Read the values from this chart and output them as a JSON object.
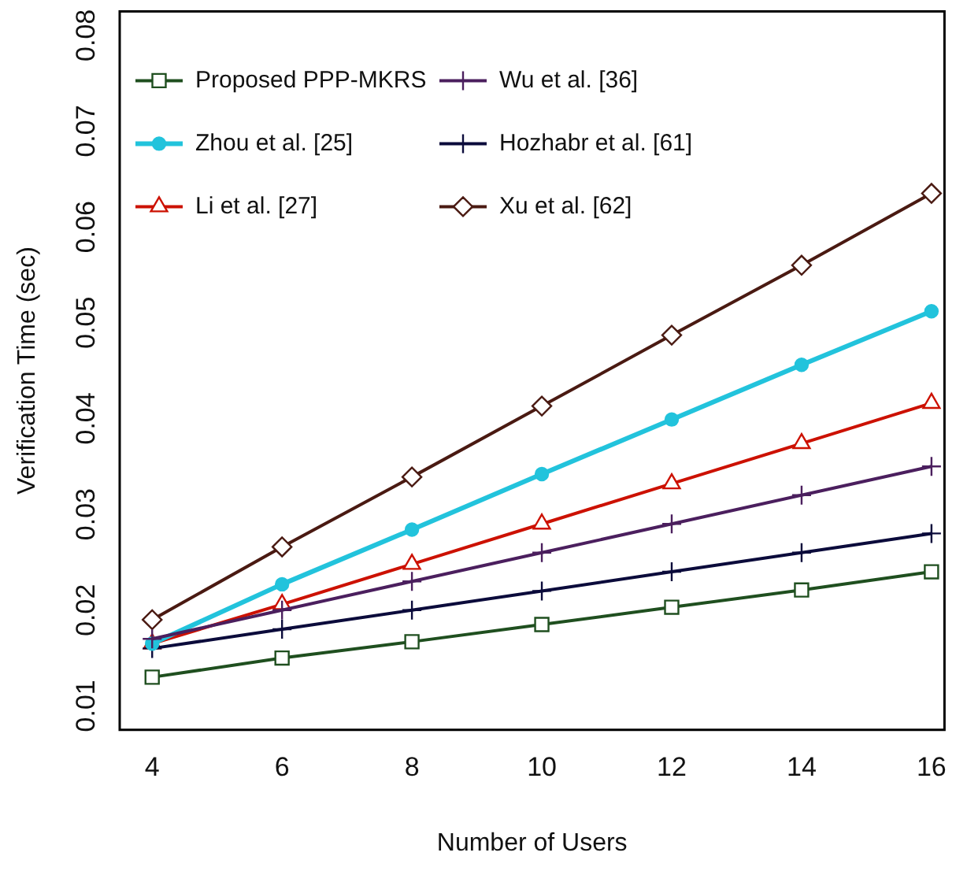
{
  "chart_data": {
    "type": "line",
    "xlabel": "Number of Users",
    "ylabel": "Verification Time (sec)",
    "x": [
      4,
      6,
      8,
      10,
      12,
      14,
      16
    ],
    "xlim": [
      3.5,
      16.2
    ],
    "xticks": [
      4,
      6,
      8,
      10,
      12,
      14,
      16
    ],
    "ylim": [
      0.0075,
      0.0825
    ],
    "yticks": [
      0.01,
      0.02,
      0.03,
      0.04,
      0.05,
      0.06,
      0.07,
      0.08
    ],
    "grid": false,
    "legend": "top left",
    "series": [
      {
        "name": "Proposed PPP-MKRS",
        "color": "#1f4f1f",
        "marker": "square",
        "values": [
          0.013,
          0.015,
          0.0167,
          0.0185,
          0.0203,
          0.0221,
          0.024
        ]
      },
      {
        "name": "Wu et al. [36]",
        "color": "#4b1f5e",
        "marker": "cross",
        "values": [
          0.017,
          0.02,
          0.023,
          0.026,
          0.029,
          0.032,
          0.035
        ]
      },
      {
        "name": "Zhou et al. [25]",
        "color": "#22c3dc",
        "marker": "circle",
        "values": [
          0.0165,
          0.0227,
          0.0284,
          0.0342,
          0.0399,
          0.0456,
          0.0512
        ]
      },
      {
        "name": "Hozhabr et al. [61]",
        "color": "#0b0b3b",
        "marker": "cross",
        "values": [
          0.016,
          0.018,
          0.02,
          0.022,
          0.024,
          0.026,
          0.028
        ]
      },
      {
        "name": "Li et al. [27]",
        "color": "#cc1100",
        "marker": "triangle",
        "values": [
          0.0165,
          0.0206,
          0.0248,
          0.029,
          0.0332,
          0.0374,
          0.0416
        ]
      },
      {
        "name": "Xu et al. [62]",
        "color": "#4a1a12",
        "marker": "diamond",
        "values": [
          0.019,
          0.0266,
          0.0339,
          0.0413,
          0.0487,
          0.056,
          0.0635
        ]
      }
    ]
  }
}
